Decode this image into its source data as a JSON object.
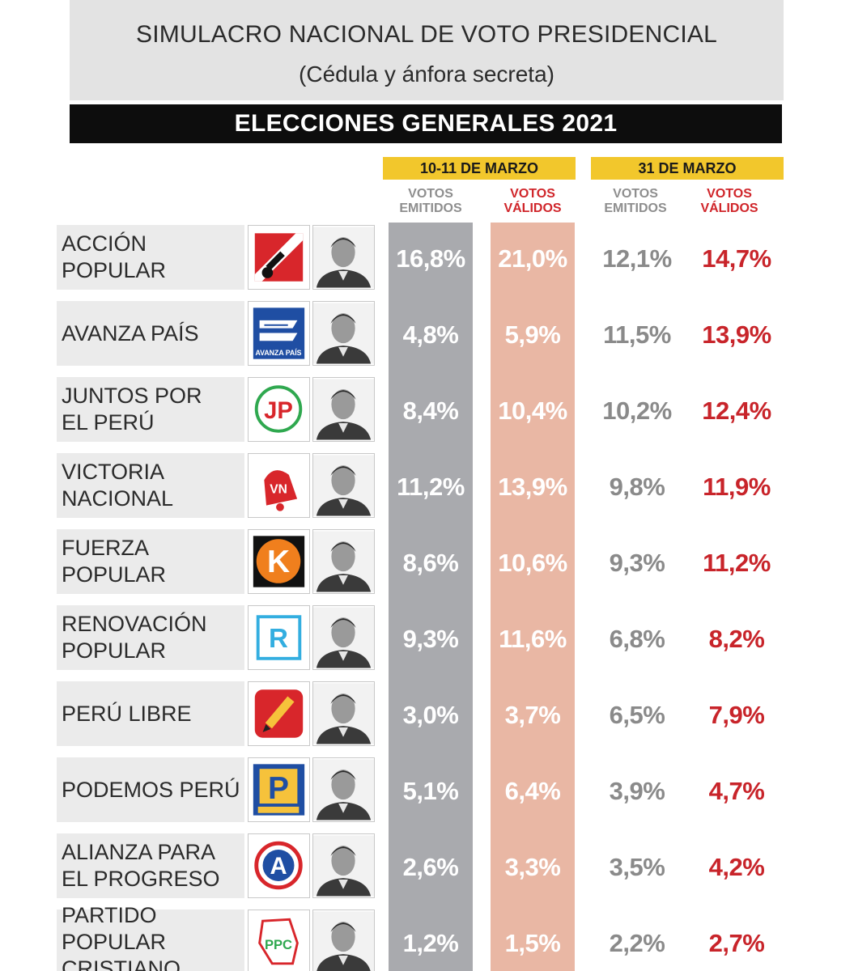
{
  "header": {
    "title": "SIMULACRO NACIONAL DE VOTO PRESIDENCIAL",
    "subtitle": "(Cédula y ánfora secreta)",
    "banner": "ELECCIONES GENERALES 2021"
  },
  "periods": [
    {
      "label": "10-11 DE MARZO",
      "col_emitidos": "VOTOS EMITIDOS",
      "col_validos": "VOTOS VÁLIDOS"
    },
    {
      "label": "31 DE MARZO",
      "col_emitidos": "VOTOS EMITIDOS",
      "col_validos": "VOTOS VÁLIDOS"
    }
  ],
  "colors": {
    "gray_column": "#a9aaae",
    "pink_column": "#e9b7a4",
    "yellow_header": "#f2c72c",
    "red_text": "#c8242a",
    "gray_text": "#8a8a8a"
  },
  "chart_data": {
    "type": "table",
    "title": "SIMULACRO NACIONAL DE VOTO PRESIDENCIAL",
    "columns": [
      "10-11 DE MARZO VOTOS EMITIDOS",
      "10-11 DE MARZO VOTOS VÁLIDOS",
      "31 DE MARZO VOTOS EMITIDOS",
      "31 DE MARZO VOTOS VÁLIDOS"
    ],
    "rows": [
      {
        "party": [
          "ACCIÓN",
          "POPULAR"
        ],
        "logo_icon": "accion-popular-logo-icon",
        "values": [
          "16,8%",
          "21,0%",
          "12,1%",
          "14,7%"
        ],
        "numeric": [
          16.8,
          21.0,
          12.1,
          14.7
        ]
      },
      {
        "party": [
          "AVANZA PAÍS"
        ],
        "logo_icon": "avanza-pais-logo-icon",
        "logo_text": "AVANZA PAÍS",
        "values": [
          "4,8%",
          "5,9%",
          "11,5%",
          "13,9%"
        ],
        "numeric": [
          4.8,
          5.9,
          11.5,
          13.9
        ]
      },
      {
        "party": [
          "JUNTOS POR",
          "EL PERÚ"
        ],
        "logo_icon": "juntos-por-el-peru-logo-icon",
        "logo_text": "JP",
        "values": [
          "8,4%",
          "10,4%",
          "10,2%",
          "12,4%"
        ],
        "numeric": [
          8.4,
          10.4,
          10.2,
          12.4
        ]
      },
      {
        "party": [
          "VICTORIA",
          "NACIONAL"
        ],
        "logo_icon": "victoria-nacional-logo-icon",
        "logo_text": "VN",
        "values": [
          "11,2%",
          "13,9%",
          "9,8%",
          "11,9%"
        ],
        "numeric": [
          11.2,
          13.9,
          9.8,
          11.9
        ]
      },
      {
        "party": [
          "FUERZA",
          "POPULAR"
        ],
        "logo_icon": "fuerza-popular-logo-icon",
        "logo_text": "K",
        "values": [
          "8,6%",
          "10,6%",
          "9,3%",
          "11,2%"
        ],
        "numeric": [
          8.6,
          10.6,
          9.3,
          11.2
        ]
      },
      {
        "party": [
          "RENOVACIÓN",
          "POPULAR"
        ],
        "logo_icon": "renovacion-popular-logo-icon",
        "logo_text": "R",
        "values": [
          "9,3%",
          "11,6%",
          "6,8%",
          "8,2%"
        ],
        "numeric": [
          9.3,
          11.6,
          6.8,
          8.2
        ]
      },
      {
        "party": [
          "PERÚ LIBRE"
        ],
        "logo_icon": "peru-libre-logo-icon",
        "values": [
          "3,0%",
          "3,7%",
          "6,5%",
          "7,9%"
        ],
        "numeric": [
          3.0,
          3.7,
          6.5,
          7.9
        ]
      },
      {
        "party": [
          "PODEMOS PERÚ"
        ],
        "logo_icon": "podemos-peru-logo-icon",
        "logo_text": "P",
        "values": [
          "5,1%",
          "6,4%",
          "3,9%",
          "4,7%"
        ],
        "numeric": [
          5.1,
          6.4,
          3.9,
          4.7
        ]
      },
      {
        "party": [
          "ALIANZA PARA",
          "EL PROGRESO"
        ],
        "logo_icon": "alianza-para-el-progreso-logo-icon",
        "logo_text": "A",
        "values": [
          "2,6%",
          "3,3%",
          "3,5%",
          "4,2%"
        ],
        "numeric": [
          2.6,
          3.3,
          3.5,
          4.2
        ]
      },
      {
        "party": [
          "PARTIDO POPULAR",
          "CRISTIANO"
        ],
        "logo_icon": "partido-popular-cristiano-logo-icon",
        "logo_text": "PPC",
        "values": [
          "1,2%",
          "1,5%",
          "2,2%",
          "2,7%"
        ],
        "numeric": [
          1.2,
          1.5,
          2.2,
          2.7
        ]
      }
    ]
  }
}
